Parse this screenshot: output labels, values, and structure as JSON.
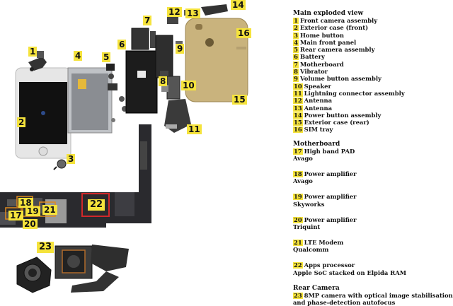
{
  "legend": {
    "main_title": "Main exploded view",
    "main_items": [
      {
        "num": "1",
        "label": "Front camera assembly"
      },
      {
        "num": "2",
        "label": "Exterior case (front)"
      },
      {
        "num": "3",
        "label": "Home button"
      },
      {
        "num": "4",
        "label": "Main front panel"
      },
      {
        "num": "5",
        "label": "Rear camera assembly"
      },
      {
        "num": "6",
        "label": "Battery"
      },
      {
        "num": "7",
        "label": "Motherboard"
      },
      {
        "num": "8",
        "label": "Vibrator"
      },
      {
        "num": "9",
        "label": "Volume button assembly"
      },
      {
        "num": "10",
        "label": "Speaker"
      },
      {
        "num": "11",
        "label": "Lightning connector assembly"
      },
      {
        "num": "12",
        "label": "Antenna"
      },
      {
        "num": "13",
        "label": "Antenna"
      },
      {
        "num": "14",
        "label": "Power button assembly"
      },
      {
        "num": "15",
        "label": "Exterior case (rear)"
      },
      {
        "num": "16",
        "label": "SIM tray"
      }
    ],
    "motherboard_title": "Motherboard",
    "motherboard_items": [
      {
        "num": "17",
        "label": "High band PAD",
        "sub": "Avago"
      },
      {
        "num": "18",
        "label": "Power amplifier",
        "sub": "Avago"
      },
      {
        "num": "19",
        "label": "Power amplifier",
        "sub": "Skyworks"
      },
      {
        "num": "20",
        "label": "Power amplifier",
        "sub": "Triquint"
      },
      {
        "num": "21",
        "label": "LTE Modem",
        "sub": "Qualcomm"
      },
      {
        "num": "22",
        "label": "Apps processor",
        "sub": "Apple SoC stacked on Elpida RAM"
      }
    ],
    "camera_title": "Rear Camera",
    "camera_item": {
      "num": "23",
      "label": "8MP camera with optical image stabilisation",
      "label2": "and phase-detection autofocus"
    }
  },
  "callouts": [
    "1",
    "2",
    "3",
    "4",
    "5",
    "6",
    "7",
    "8",
    "9",
    "10",
    "11",
    "12",
    "13",
    "14",
    "15",
    "16",
    "17",
    "18",
    "19",
    "20",
    "21",
    "22",
    "23"
  ],
  "colors": {
    "highlight": "#f5e33c",
    "pcb": "#2a2a2e",
    "gold_case": "#c9b37d",
    "chip_outline_red": "#d0282a",
    "chip_outline_orange": "#e08a1e"
  }
}
